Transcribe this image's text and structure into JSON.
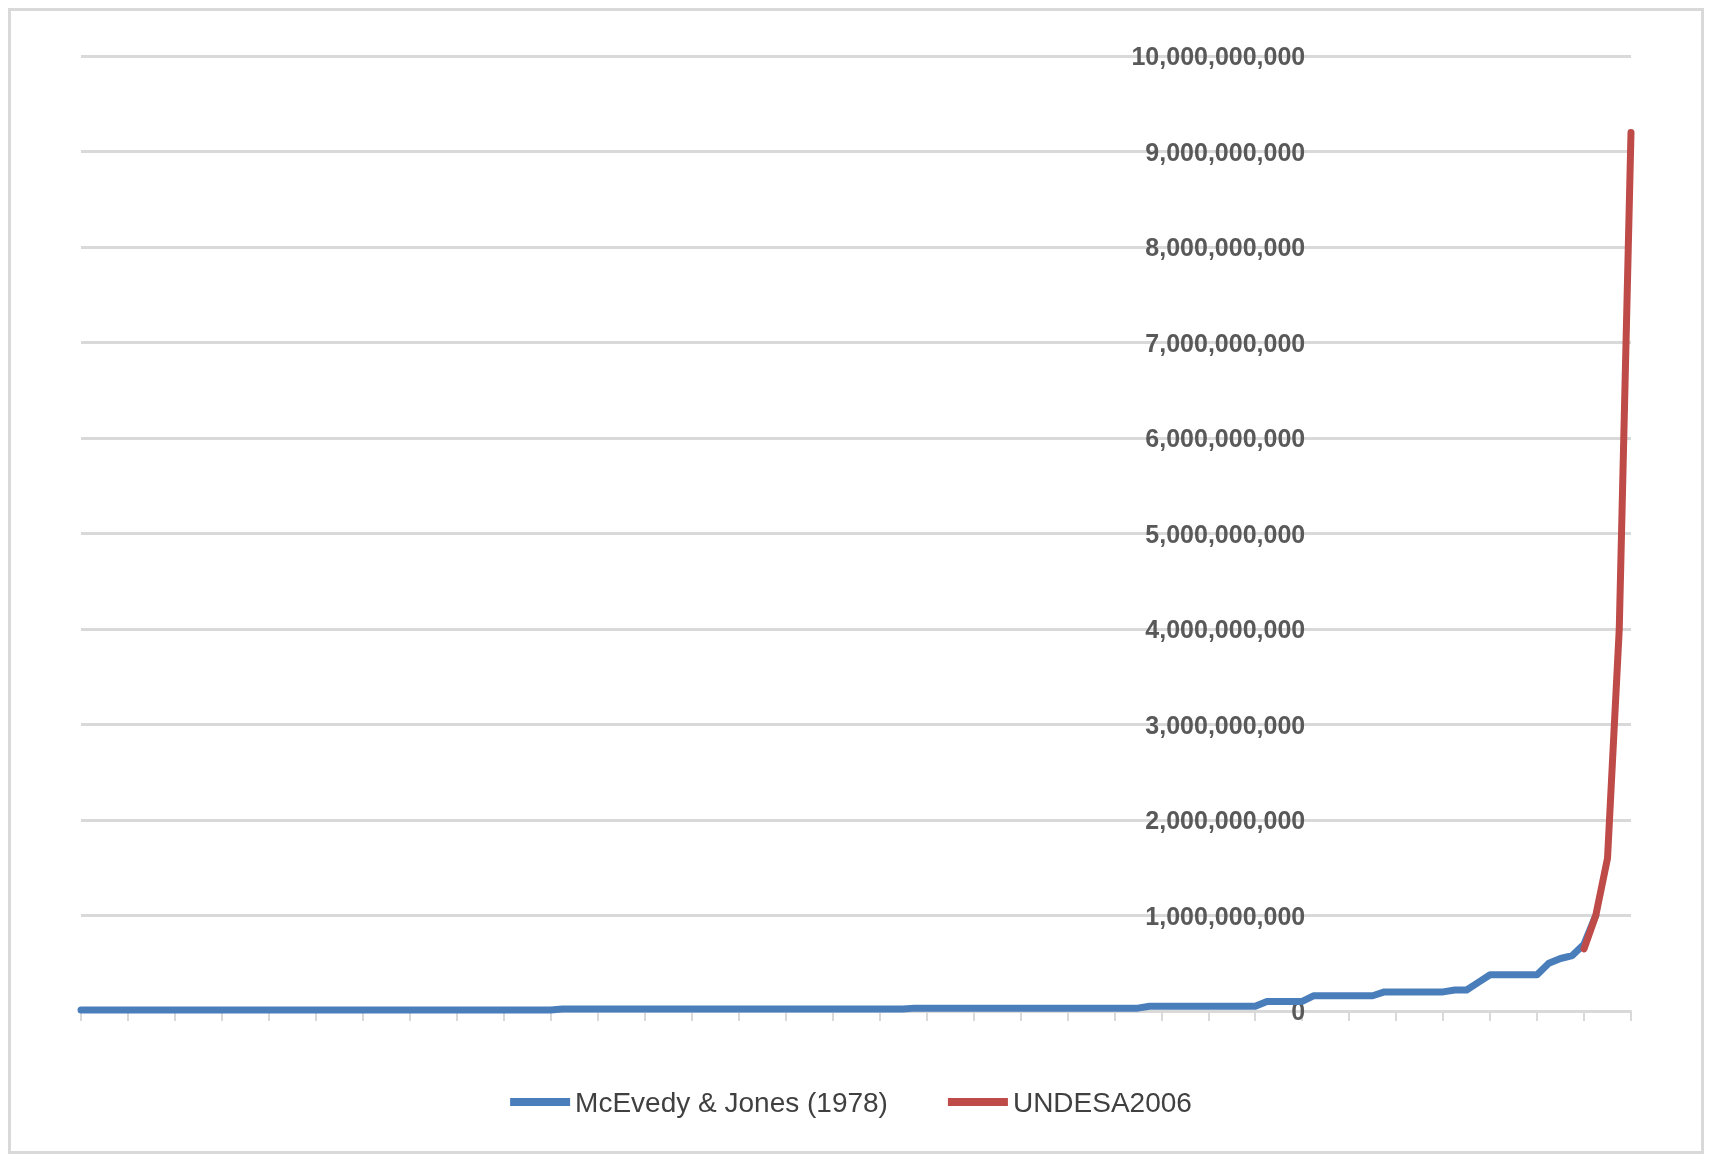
{
  "chart_data": {
    "type": "line",
    "categories": [
      null,
      null,
      null,
      null,
      null,
      null,
      null,
      null,
      null,
      null,
      null,
      null,
      null,
      null,
      null,
      null,
      null,
      null,
      null,
      null,
      null,
      null,
      null,
      null,
      null,
      null,
      null,
      null,
      null,
      null,
      null,
      null,
      null,
      null,
      null,
      null,
      null,
      null,
      null,
      null,
      null,
      null,
      null,
      null,
      null,
      null,
      null,
      null,
      null,
      null,
      null,
      null,
      null,
      null,
      null,
      null,
      null,
      null,
      null,
      null,
      null,
      null,
      null,
      null,
      null,
      null,
      null,
      null,
      null,
      null,
      null,
      null,
      null,
      null,
      null,
      null,
      null,
      null,
      null,
      null,
      null,
      null,
      null,
      null,
      null,
      null,
      null,
      null,
      null,
      null,
      null,
      null,
      null,
      null,
      null,
      null,
      null,
      null,
      null,
      null,
      null,
      null,
      null,
      null,
      null,
      null,
      null,
      null,
      null,
      null,
      null,
      null,
      null,
      null,
      null,
      null,
      null,
      null,
      null,
      null,
      null,
      null,
      null,
      null,
      null,
      null,
      null,
      null,
      null,
      null,
      null,
      null,
      null
    ],
    "series": [
      {
        "name": "McEvedy & Jones (1978)",
        "color": "#4a7ebb",
        "values": [
          10000000,
          10000000,
          10000000,
          10000000,
          10000000,
          10000000,
          10000000,
          10000000,
          10000000,
          10000000,
          10000000,
          10000000,
          10000000,
          10000000,
          10000000,
          10000000,
          10000000,
          10000000,
          10000000,
          10000000,
          10000000,
          10000000,
          10000000,
          10000000,
          10000000,
          10000000,
          10000000,
          10000000,
          10000000,
          10000000,
          10000000,
          10000000,
          10000000,
          10000000,
          10000000,
          10000000,
          10000000,
          10000000,
          10000000,
          10000000,
          10000000,
          20000000,
          20000000,
          20000000,
          20000000,
          20000000,
          20000000,
          20000000,
          20000000,
          20000000,
          20000000,
          20000000,
          20000000,
          20000000,
          20000000,
          20000000,
          20000000,
          20000000,
          20000000,
          20000000,
          20000000,
          20000000,
          20000000,
          20000000,
          20000000,
          20000000,
          20000000,
          20000000,
          20000000,
          20000000,
          20000000,
          30000000,
          30000000,
          30000000,
          30000000,
          30000000,
          30000000,
          30000000,
          30000000,
          30000000,
          30000000,
          30000000,
          30000000,
          30000000,
          30000000,
          30000000,
          30000000,
          30000000,
          30000000,
          30000000,
          30000000,
          50000000,
          50000000,
          50000000,
          50000000,
          50000000,
          50000000,
          50000000,
          50000000,
          50000000,
          50000000,
          100000000,
          100000000,
          100000000,
          100000000,
          160000000,
          160000000,
          160000000,
          160000000,
          160000000,
          160000000,
          200000000,
          200000000,
          200000000,
          200000000,
          200000000,
          200000000,
          220000000,
          220000000,
          300000000,
          380000000,
          380000000,
          380000000,
          380000000,
          380000000,
          500000000,
          550000000,
          580000000,
          700000000,
          1000000000,
          null,
          null,
          null
        ]
      },
      {
        "name": "UNDESA2006",
        "color": "#be4b48",
        "values": [
          null,
          null,
          null,
          null,
          null,
          null,
          null,
          null,
          null,
          null,
          null,
          null,
          null,
          null,
          null,
          null,
          null,
          null,
          null,
          null,
          null,
          null,
          null,
          null,
          null,
          null,
          null,
          null,
          null,
          null,
          null,
          null,
          null,
          null,
          null,
          null,
          null,
          null,
          null,
          null,
          null,
          null,
          null,
          null,
          null,
          null,
          null,
          null,
          null,
          null,
          null,
          null,
          null,
          null,
          null,
          null,
          null,
          null,
          null,
          null,
          null,
          null,
          null,
          null,
          null,
          null,
          null,
          null,
          null,
          null,
          null,
          null,
          null,
          null,
          null,
          null,
          null,
          null,
          null,
          null,
          null,
          null,
          null,
          null,
          null,
          null,
          null,
          null,
          null,
          null,
          null,
          null,
          null,
          null,
          null,
          null,
          null,
          null,
          null,
          null,
          null,
          null,
          null,
          null,
          null,
          null,
          null,
          null,
          null,
          null,
          null,
          null,
          null,
          null,
          null,
          null,
          null,
          null,
          null,
          null,
          null,
          null,
          null,
          null,
          null,
          null,
          null,
          null,
          650000000,
          1000000000,
          1600000000,
          4000000000,
          9200000000
        ]
      }
    ],
    "ylim": [
      0,
      10000000000
    ],
    "yticks": [
      0,
      {
        "value": 1000000000,
        "label": "1,000,000,000"
      },
      {
        "value": 2000000000,
        "label": "2,000,000,000"
      },
      {
        "value": 3000000000,
        "label": "3,000,000,000"
      },
      {
        "value": 4000000000,
        "label": "4,000,000,000"
      },
      {
        "value": 5000000000,
        "label": "5,000,000,000"
      },
      {
        "value": 6000000000,
        "label": "6,000,000,000"
      },
      {
        "value": 7000000000,
        "label": "7,000,000,000"
      },
      {
        "value": 8000000000,
        "label": "8,000,000,000"
      },
      {
        "value": 9000000000,
        "label": "9,000,000,000"
      },
      {
        "value": 10000000000,
        "label": "10,000,000,000"
      }
    ],
    "grid": "y",
    "legend": "bottom",
    "tick_labels": "y"
  }
}
